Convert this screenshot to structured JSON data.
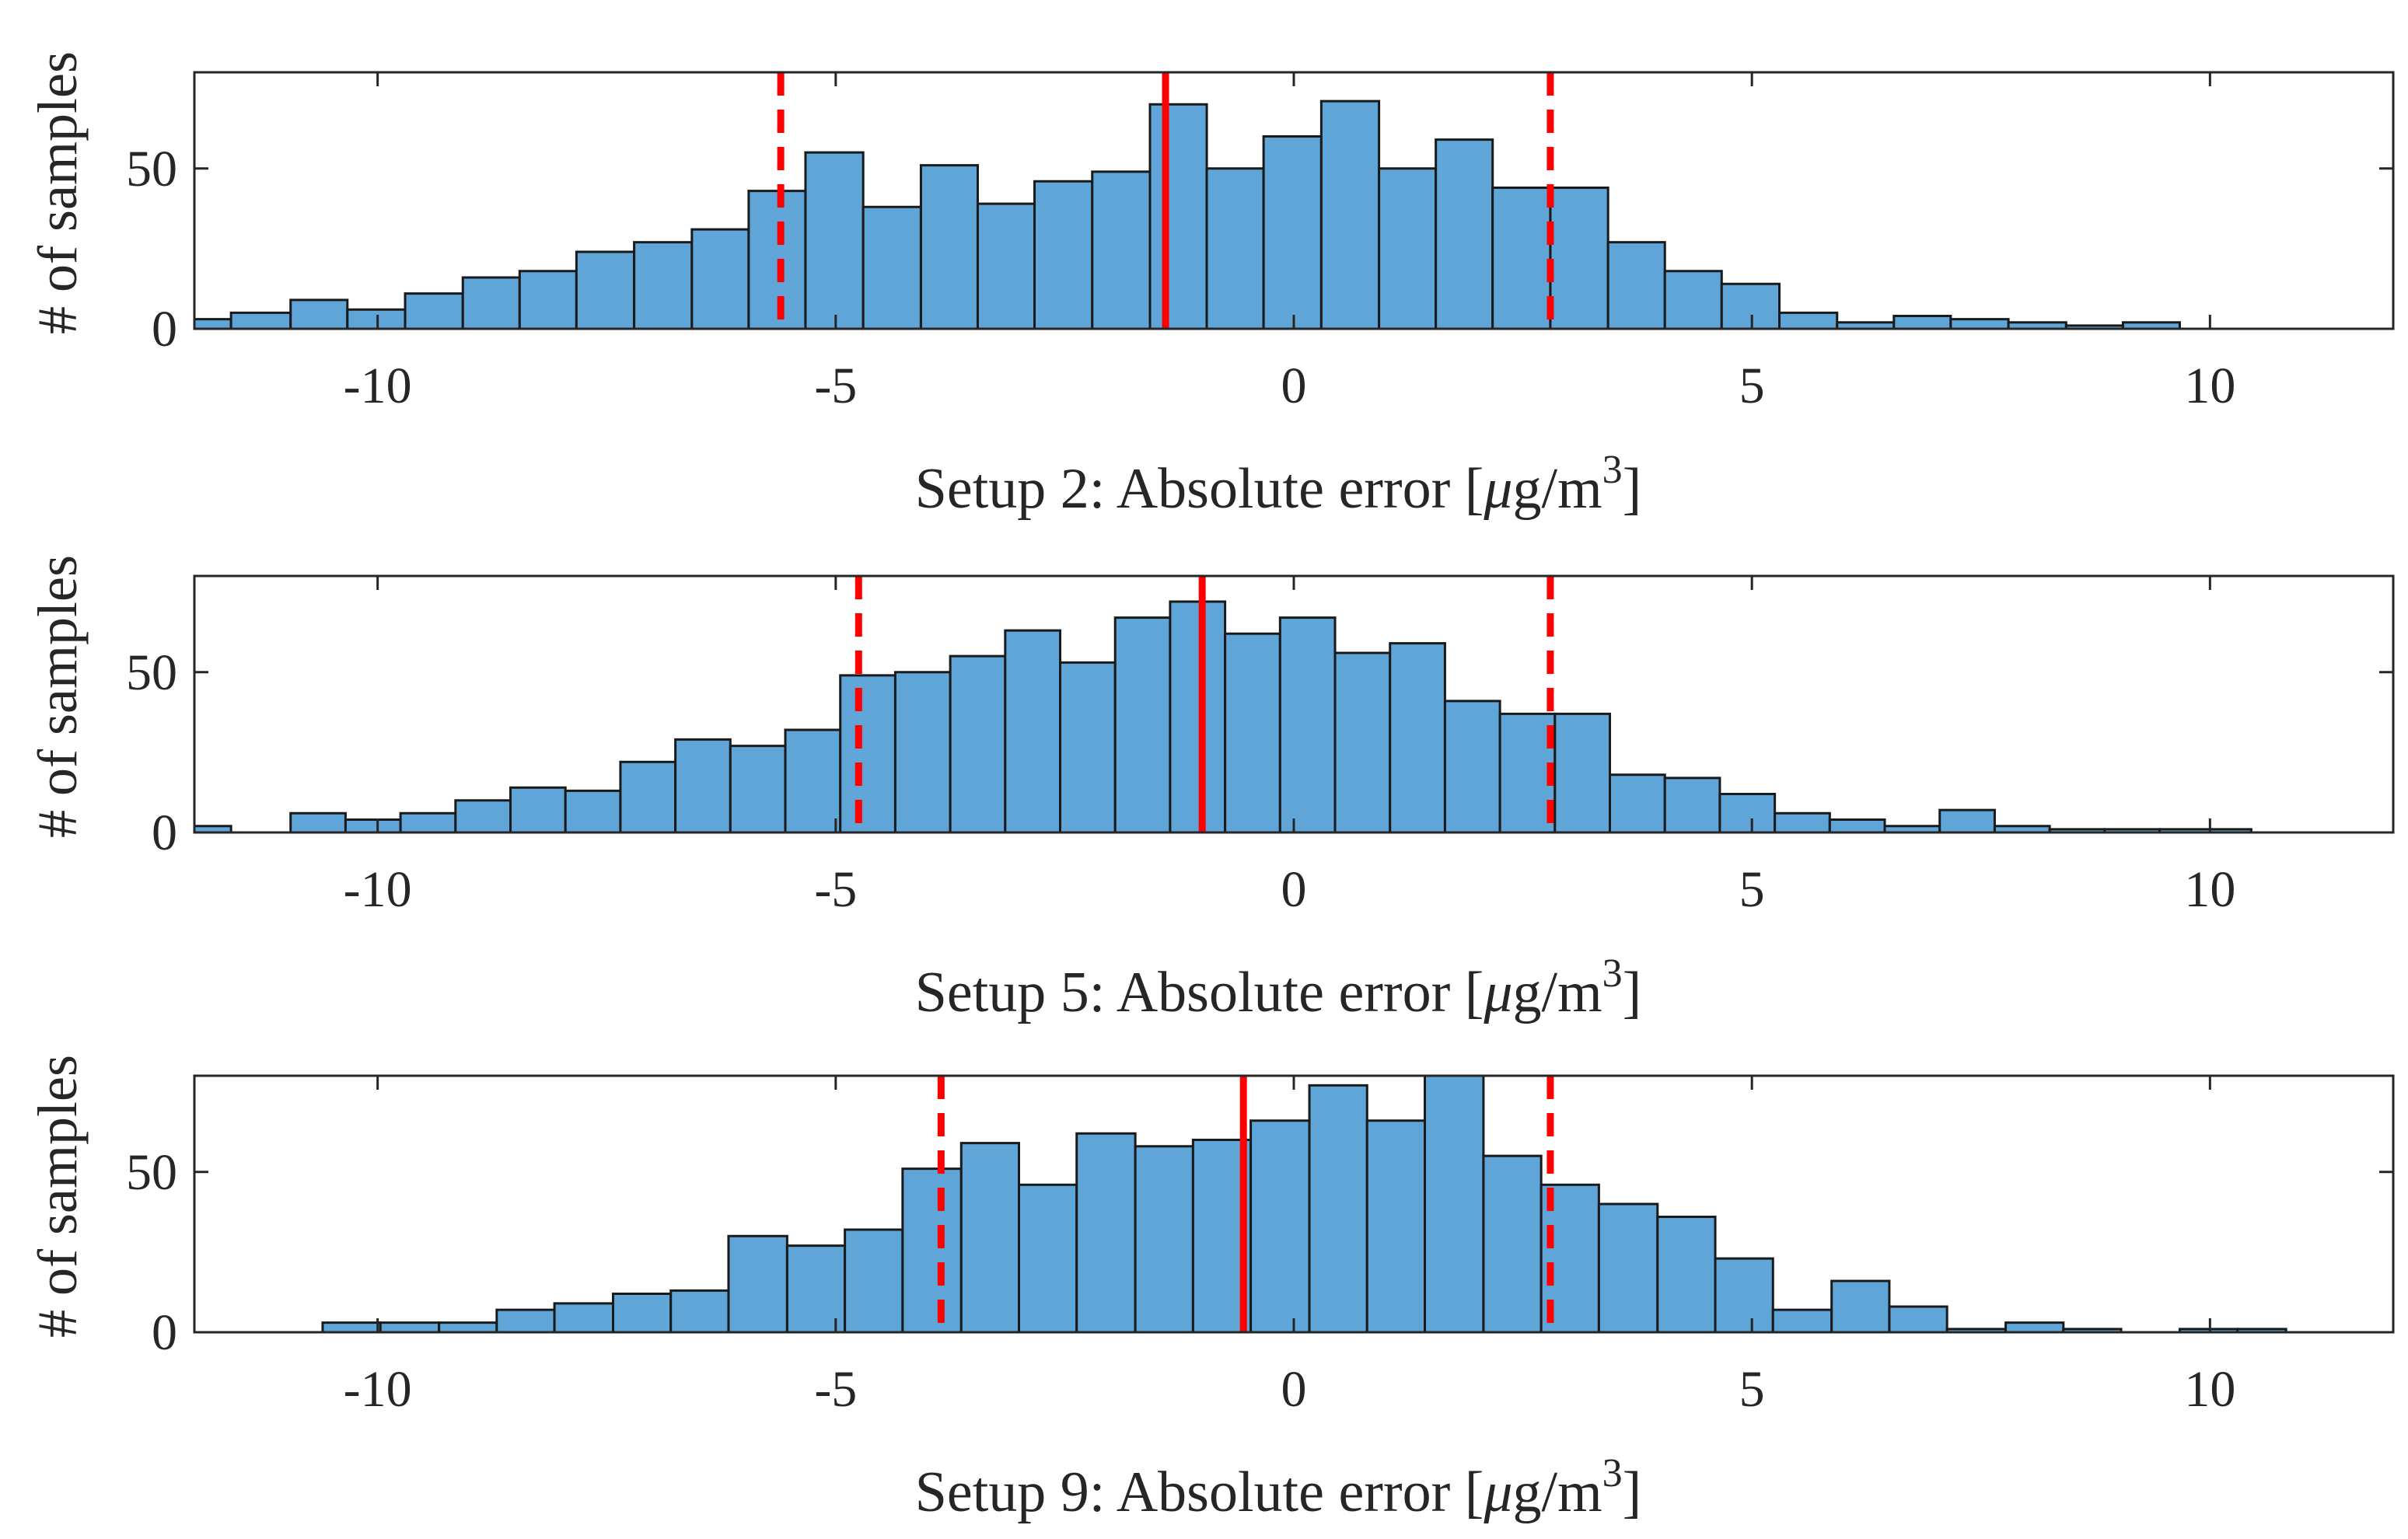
{
  "chart_data": [
    {
      "type": "bar",
      "xlabel_prefix": "Setup 2: Absolute error [",
      "xlabel_unit": "μg/m",
      "xlabel_sup": "3",
      "xlabel_suffix": "]",
      "ylabel": "# of samples",
      "xlim": [
        -12,
        12
      ],
      "ylim": [
        0,
        80
      ],
      "xticks": [
        "-10",
        "-5",
        "0",
        "5",
        "10"
      ],
      "yticks": [
        "0",
        "50"
      ],
      "mean_line": -1.4,
      "bound_lines": [
        -5.6,
        2.8
      ],
      "bin_edges": [
        -12.2,
        -11.6,
        -10.95,
        -10.33,
        -9.7,
        -9.07,
        -8.45,
        -7.83,
        -7.2,
        -6.57,
        -5.95,
        -5.33,
        -4.7,
        -4.07,
        -3.45,
        -2.83,
        -2.2,
        -1.57,
        -0.95,
        -0.33,
        0.3,
        0.93,
        1.55,
        2.17,
        2.8,
        3.43,
        4.05,
        4.67,
        5.3,
        5.93,
        6.55,
        7.17,
        7.8,
        8.43,
        9.05,
        9.67,
        10.3
      ],
      "values": [
        3,
        5,
        9,
        6,
        11,
        16,
        18,
        24,
        27,
        31,
        43,
        55,
        38,
        51,
        39,
        46,
        49,
        70,
        50,
        60,
        71,
        50,
        59,
        44,
        44,
        27,
        18,
        14,
        5,
        2,
        4,
        3,
        2,
        1,
        2,
        0
      ]
    },
    {
      "type": "bar",
      "xlabel_prefix": "Setup 5: Absolute error [",
      "xlabel_unit": "μg/m",
      "xlabel_sup": "3",
      "xlabel_suffix": "]",
      "ylabel": "# of samples",
      "xlim": [
        -12,
        12
      ],
      "ylim": [
        0,
        80
      ],
      "xticks": [
        "-10",
        "-5",
        "0",
        "5",
        "10"
      ],
      "yticks": [
        "0",
        "50"
      ],
      "mean_line": -1.0,
      "bound_lines": [
        -4.75,
        2.8
      ],
      "bin_edges": [
        -12.2,
        -11.6,
        -10.95,
        -10.35,
        -9.75,
        -9.15,
        -8.55,
        -7.95,
        -7.35,
        -6.75,
        -6.15,
        -5.55,
        -4.95,
        -4.35,
        -3.75,
        -3.15,
        -2.55,
        -1.95,
        -1.35,
        -0.75,
        -0.15,
        0.45,
        1.05,
        1.65,
        2.25,
        2.85,
        3.45,
        4.05,
        4.65,
        5.25,
        5.85,
        6.45,
        7.05,
        7.65,
        8.25,
        8.85,
        9.45,
        10.45
      ],
      "values": [
        2,
        0,
        6,
        4,
        6,
        10,
        14,
        13,
        22,
        29,
        27,
        32,
        49,
        50,
        55,
        63,
        53,
        67,
        72,
        62,
        67,
        56,
        59,
        41,
        37,
        37,
        18,
        17,
        12,
        6,
        4,
        2,
        7,
        2,
        1,
        1,
        1
      ]
    },
    {
      "type": "bar",
      "xlabel_prefix": "Setup 9: Absolute error [",
      "xlabel_unit": "μg/m",
      "xlabel_sup": "3",
      "xlabel_suffix": "]",
      "ylabel": "# of samples",
      "xlim": [
        -12,
        12
      ],
      "ylim": [
        0,
        80
      ],
      "xticks": [
        "-10",
        "-5",
        "0",
        "5",
        "10"
      ],
      "yticks": [
        "0",
        "50"
      ],
      "mean_line": -0.55,
      "bound_lines": [
        -3.85,
        2.8
      ],
      "bin_edges": [
        -10.6,
        -9.97,
        -9.33,
        -8.7,
        -8.07,
        -7.43,
        -6.8,
        -6.17,
        -5.53,
        -4.9,
        -4.27,
        -3.63,
        -3.0,
        -2.37,
        -1.73,
        -1.1,
        -0.47,
        0.17,
        0.8,
        1.43,
        2.07,
        2.7,
        3.33,
        3.97,
        4.6,
        5.23,
        5.87,
        6.5,
        7.13,
        7.77,
        8.4,
        9.03,
        9.67,
        10.3,
        10.83
      ],
      "values": [
        3,
        3,
        3,
        7,
        9,
        12,
        13,
        30,
        27,
        32,
        51,
        59,
        46,
        62,
        58,
        60,
        66,
        77,
        66,
        82,
        55,
        46,
        40,
        36,
        23,
        7,
        16,
        8,
        1,
        3,
        1,
        0,
        1,
        1
      ]
    }
  ]
}
